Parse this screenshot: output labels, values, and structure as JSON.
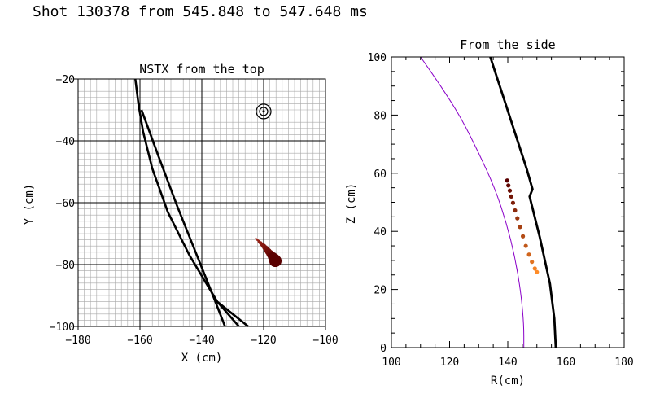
{
  "header": {
    "title": "Shot 130378 from 545.848 to 547.648 ms"
  },
  "colors": {
    "frame": "#000000",
    "fine_grid": "#a8a8a8",
    "major_grid": "#000000",
    "purple_curve": "#8a00c8",
    "dot_dark": "#5a0000",
    "dot_light": "#ff8c28"
  },
  "chart_data": [
    {
      "type": "line",
      "title": "NSTX from the top",
      "xlabel": "X (cm)",
      "ylabel": "Y (cm)",
      "xlim": [
        -180,
        -100
      ],
      "ylim": [
        -100,
        -20
      ],
      "xticks": [
        -180,
        -160,
        -140,
        -120,
        -100
      ],
      "yticks": [
        -100,
        -80,
        -60,
        -40,
        -20
      ],
      "xtick_labels": [
        "−180",
        "−160",
        "−140",
        "−120",
        "−100"
      ],
      "ytick_labels": [
        "−100",
        "−80",
        "−60",
        "−40",
        "−20"
      ],
      "grid": "fine 2 cm grid with major lines every 20 cm",
      "series": [
        {
          "name": "view-line-a",
          "points": [
            [
              -161.5,
              -20
            ],
            [
              -160.5,
              -28
            ],
            [
              -159,
              -37
            ],
            [
              -156,
              -49
            ],
            [
              -151,
              -63
            ],
            [
              -144,
              -77
            ],
            [
              -135,
              -92
            ],
            [
              -128,
              -100
            ]
          ]
        },
        {
          "name": "view-line-b",
          "points": [
            [
              -159.5,
              -30
            ],
            [
              -154,
              -45
            ],
            [
              -148,
              -61
            ],
            [
              -142,
              -76
            ],
            [
              -136,
              -91
            ],
            [
              -132.5,
              -100
            ]
          ]
        },
        {
          "name": "view-line-c",
          "points": [
            [
              -135,
              -92
            ],
            [
              -130,
              -96
            ],
            [
              -125,
              -100
            ]
          ]
        }
      ],
      "markers": [
        {
          "name": "beam-target",
          "x": -120,
          "y": -30.5,
          "style": "double circle with center dot"
        }
      ],
      "dots": [
        {
          "x": -122.5,
          "y": -71.5,
          "s": 0.5,
          "c": 0.0
        },
        {
          "x": -122.0,
          "y": -72.0,
          "s": 0.7,
          "c": 0.0
        },
        {
          "x": -121.5,
          "y": -72.5,
          "s": 0.9,
          "c": 0.0
        },
        {
          "x": -121.0,
          "y": -73.0,
          "s": 1.1,
          "c": 0.0
        },
        {
          "x": -120.5,
          "y": -73.5,
          "s": 1.3,
          "c": 0.0
        },
        {
          "x": -120.0,
          "y": -74.0,
          "s": 1.5,
          "c": 0.0
        },
        {
          "x": -119.5,
          "y": -74.6,
          "s": 1.7,
          "c": 0.0
        },
        {
          "x": -119.0,
          "y": -75.2,
          "s": 1.9,
          "c": 0.0
        },
        {
          "x": -118.5,
          "y": -75.8,
          "s": 2.1,
          "c": 0.0
        },
        {
          "x": -118.0,
          "y": -76.4,
          "s": 2.3,
          "c": 0.0
        },
        {
          "x": -117.5,
          "y": -77.0,
          "s": 2.6,
          "c": 0.0
        },
        {
          "x": -117.0,
          "y": -77.6,
          "s": 3.0,
          "c": 0.0
        },
        {
          "x": -116.5,
          "y": -78.2,
          "s": 3.4,
          "c": 0.0
        },
        {
          "x": -116.2,
          "y": -78.8,
          "s": 3.8,
          "c": 0.0
        }
      ]
    },
    {
      "type": "line",
      "title": "From the side",
      "xlabel": "R(cm)",
      "ylabel": "Z (cm)",
      "xlim": [
        100,
        180
      ],
      "ylim": [
        0,
        100
      ],
      "xticks": [
        100,
        120,
        140,
        160,
        180
      ],
      "yticks": [
        0,
        20,
        40,
        60,
        80,
        100
      ],
      "xtick_labels": [
        "100",
        "120",
        "140",
        "160",
        "180"
      ],
      "ytick_labels": [
        "0",
        "20",
        "40",
        "60",
        "80",
        "100"
      ],
      "grid": "off",
      "series": [
        {
          "name": "vessel-boundary",
          "color": "black",
          "points": [
            [
              134,
              100
            ],
            [
              140.5,
              80
            ],
            [
              146.5,
              61.5
            ],
            [
              148.5,
              54.5
            ],
            [
              147.5,
              52
            ],
            [
              151,
              38
            ],
            [
              154.5,
              22
            ],
            [
              156,
              10
            ],
            [
              156.5,
              0
            ]
          ]
        },
        {
          "name": "plasma-boundary",
          "color": "purple",
          "points": [
            [
              110,
              100
            ],
            [
              117,
              90
            ],
            [
              124,
              79
            ],
            [
              130,
              67
            ],
            [
              135.5,
              55
            ],
            [
              139.5,
              43
            ],
            [
              142.5,
              31
            ],
            [
              144.5,
              19
            ],
            [
              145.5,
              8
            ],
            [
              145.5,
              0
            ]
          ]
        }
      ],
      "dots": [
        {
          "r": 139.8,
          "z": 57.5,
          "c": 0.0
        },
        {
          "r": 140.2,
          "z": 55.8,
          "c": 0.05
        },
        {
          "r": 140.7,
          "z": 54.0,
          "c": 0.1
        },
        {
          "r": 141.2,
          "z": 52.0,
          "c": 0.15
        },
        {
          "r": 141.8,
          "z": 49.8,
          "c": 0.22
        },
        {
          "r": 142.5,
          "z": 47.2,
          "c": 0.3
        },
        {
          "r": 143.3,
          "z": 44.5,
          "c": 0.38
        },
        {
          "r": 144.2,
          "z": 41.5,
          "c": 0.46
        },
        {
          "r": 145.2,
          "z": 38.3,
          "c": 0.54
        },
        {
          "r": 146.2,
          "z": 35.0,
          "c": 0.62
        },
        {
          "r": 147.3,
          "z": 32.0,
          "c": 0.72
        },
        {
          "r": 148.3,
          "z": 29.5,
          "c": 0.82
        },
        {
          "r": 149.3,
          "z": 27.2,
          "c": 0.92
        },
        {
          "r": 150.0,
          "z": 26.0,
          "c": 1.0
        }
      ]
    }
  ]
}
